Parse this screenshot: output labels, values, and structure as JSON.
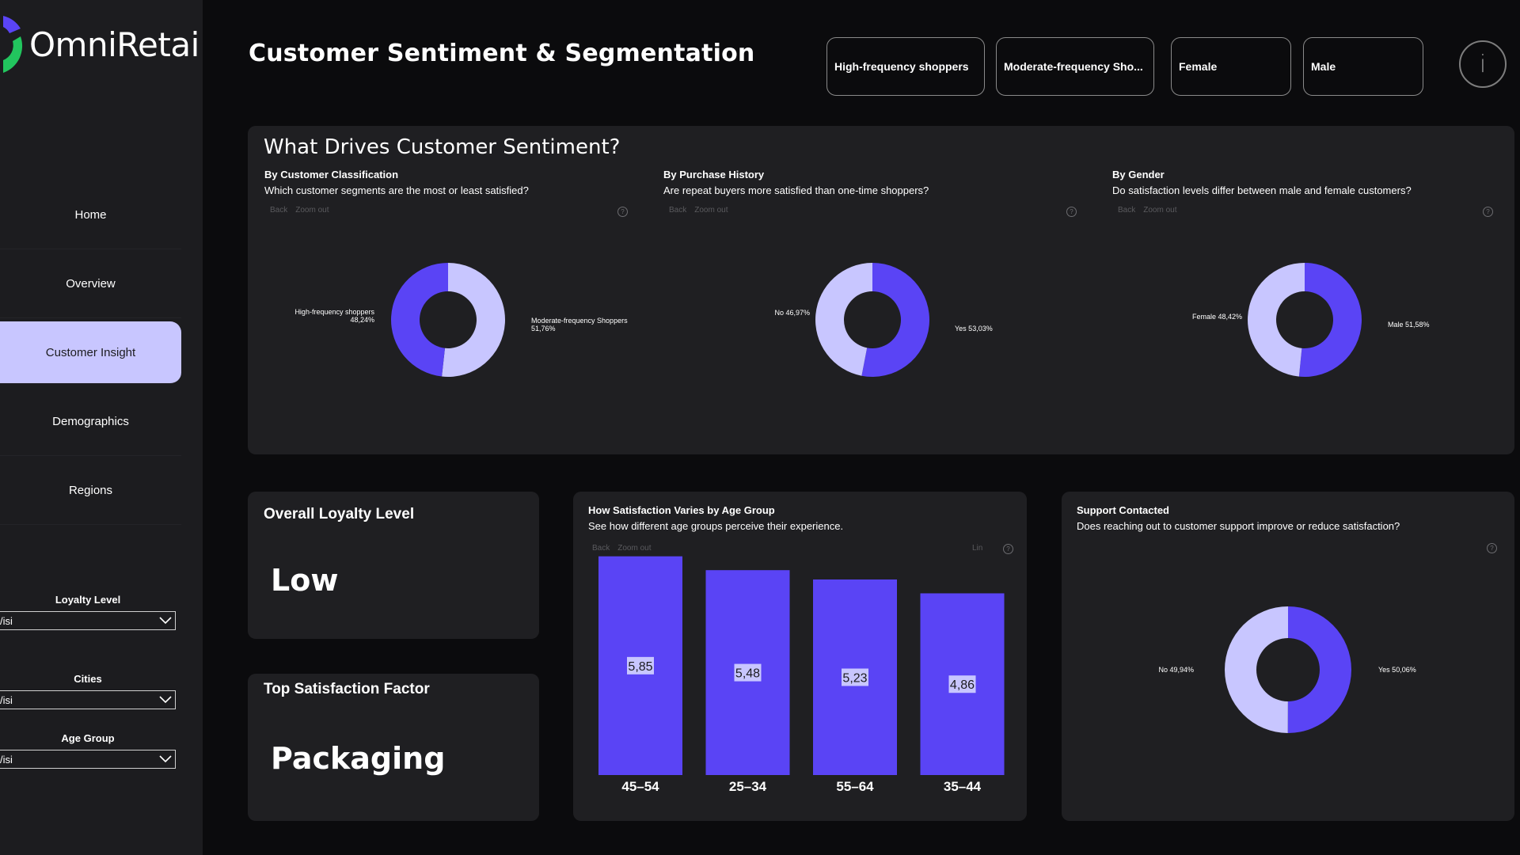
{
  "app": {
    "logo_text": "OmniRetai"
  },
  "nav": [
    {
      "label": "Home"
    },
    {
      "label": "Overview"
    },
    {
      "label": "Customer Insight",
      "active": true
    },
    {
      "label": "Demographics"
    },
    {
      "label": "Regions"
    }
  ],
  "filters": [
    {
      "label": "Loyalty Level",
      "value": "/isi"
    },
    {
      "label": "Cities",
      "value": "/isi"
    },
    {
      "label": "Age Group",
      "value": "/isi"
    }
  ],
  "header": {
    "title": "Customer Sentiment & Segmentation",
    "chips": [
      "High-frequency shoppers",
      "Moderate-frequency Sho...",
      "Female",
      "Male"
    ],
    "info_icon": "info-icon"
  },
  "drivers": {
    "title": "What Drives Customer Sentiment?",
    "toolbar": {
      "back": "Back",
      "zoom": "Zoom out"
    },
    "charts": [
      {
        "title": "By Customer Classification",
        "question": "Which customer segments are the most or least satisfied?",
        "left_label": [
          "High-frequency shoppers",
          "48,24%"
        ],
        "right_label": [
          "Moderate-frequency Shoppers",
          "51,76%"
        ]
      },
      {
        "title": "By Purchase History",
        "question": "Are repeat buyers more satisfied than one-time shoppers?",
        "left_label": [
          "No 46,97%"
        ],
        "right_label": [
          "Yes 53,03%"
        ]
      },
      {
        "title": "By Gender",
        "question": "Do satisfaction levels differ between male and female customers?",
        "left_label": [
          "Female 48,42%"
        ],
        "right_label": [
          "Male 51,58%"
        ]
      }
    ]
  },
  "loyalty": {
    "title": "Overall Loyalty Level",
    "value": "Low"
  },
  "top_factor": {
    "title": "Top Satisfaction Factor",
    "value": "Packaging"
  },
  "age_chart": {
    "title": "How Satisfaction Varies by Age Group",
    "question": "See how different age groups perceive their experience.",
    "toolbar": {
      "back": "Back",
      "zoom": "Zoom out",
      "lin": "Lin"
    }
  },
  "support": {
    "title": "Support Contacted",
    "question": "Does reaching out to customer support improve or reduce satisfaction?",
    "left_label": "No 49,94%",
    "right_label": "Yes 50,06%"
  },
  "colors": {
    "accent": "#5a44f5",
    "accent_light": "#c8c6ff",
    "card": "#1f1f22"
  },
  "chart_data": [
    {
      "type": "pie",
      "categories": [
        "High-frequency shoppers",
        "Moderate-frequency Shoppers"
      ],
      "values": [
        48.24,
        51.76
      ]
    },
    {
      "type": "pie",
      "categories": [
        "No",
        "Yes"
      ],
      "values": [
        46.97,
        53.03
      ]
    },
    {
      "type": "pie",
      "categories": [
        "Female",
        "Male"
      ],
      "values": [
        48.42,
        51.58
      ]
    },
    {
      "type": "bar",
      "categories": [
        "45–54",
        "25–34",
        "55–64",
        "35–44"
      ],
      "values": [
        5.85,
        5.48,
        5.23,
        4.86
      ],
      "value_labels": [
        "5,85",
        "5,48",
        "5,23",
        "4,86"
      ],
      "ylim": [
        0,
        6.5
      ]
    },
    {
      "type": "pie",
      "categories": [
        "No",
        "Yes"
      ],
      "values": [
        49.94,
        50.06
      ]
    }
  ]
}
